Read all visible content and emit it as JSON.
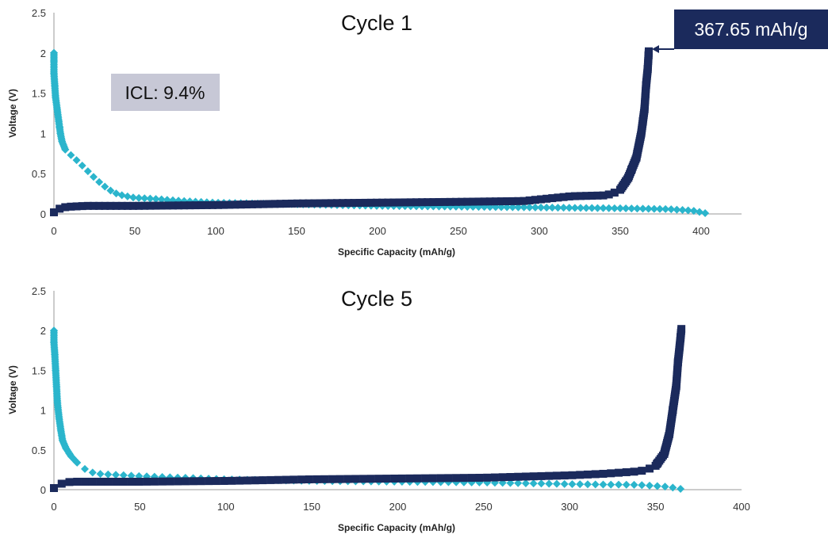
{
  "chart_data": [
    {
      "type": "scatter",
      "title": "Cycle 1",
      "xlabel": "Specific Capacity (mAh/g)",
      "ylabel": "Voltage (V)",
      "xlim": [
        0,
        420
      ],
      "ylim": [
        0,
        2.5
      ],
      "xticks": [
        0,
        50,
        100,
        150,
        200,
        250,
        300,
        350,
        400
      ],
      "yticks": [
        0,
        0.5,
        1,
        1.5,
        2,
        2.5
      ],
      "grid": false,
      "annotations": [
        {
          "text": "367.65 mAh/g",
          "x": 367.65,
          "y": 2.02,
          "style": "dark",
          "arrow": true
        },
        {
          "text": "ICL: 9.4%",
          "style": "grey"
        }
      ],
      "series": [
        {
          "marker": "diamond",
          "color": "#2bb5cc",
          "points": [
            [
              0,
              2.0
            ],
            [
              0,
              1.9
            ],
            [
              0,
              1.75
            ],
            [
              0.5,
              1.6
            ],
            [
              1,
              1.45
            ],
            [
              2,
              1.3
            ],
            [
              3,
              1.15
            ],
            [
              4,
              1.0
            ],
            [
              5,
              0.9
            ],
            [
              7,
              0.8
            ],
            [
              10,
              0.74
            ],
            [
              15,
              0.65
            ],
            [
              20,
              0.55
            ],
            [
              25,
              0.45
            ],
            [
              30,
              0.36
            ],
            [
              35,
              0.29
            ],
            [
              40,
              0.24
            ],
            [
              50,
              0.2
            ],
            [
              60,
              0.19
            ],
            [
              80,
              0.16
            ],
            [
              100,
              0.14
            ],
            [
              150,
              0.12
            ],
            [
              200,
              0.1
            ],
            [
              250,
              0.09
            ],
            [
              300,
              0.08
            ],
            [
              350,
              0.07
            ],
            [
              380,
              0.06
            ],
            [
              395,
              0.04
            ],
            [
              400,
              0.02
            ],
            [
              405,
              0.0
            ]
          ]
        },
        {
          "marker": "square",
          "color": "#1b2a5c",
          "points": [
            [
              0,
              0.02
            ],
            [
              2,
              0.05
            ],
            [
              5,
              0.08
            ],
            [
              10,
              0.09
            ],
            [
              20,
              0.1
            ],
            [
              50,
              0.1
            ],
            [
              100,
              0.11
            ],
            [
              150,
              0.13
            ],
            [
              200,
              0.14
            ],
            [
              250,
              0.15
            ],
            [
              290,
              0.16
            ],
            [
              300,
              0.18
            ],
            [
              310,
              0.2
            ],
            [
              320,
              0.22
            ],
            [
              340,
              0.23
            ],
            [
              345,
              0.25
            ],
            [
              350,
              0.3
            ],
            [
              355,
              0.45
            ],
            [
              360,
              0.7
            ],
            [
              363,
              1.0
            ],
            [
              365,
              1.3
            ],
            [
              366,
              1.6
            ],
            [
              367,
              1.8
            ],
            [
              367.65,
              2.02
            ]
          ]
        }
      ]
    },
    {
      "type": "scatter",
      "title": "Cycle 5",
      "xlabel": "Specific Capacity (mAh/g)",
      "ylabel": "Voltage (V)",
      "xlim": [
        0,
        400
      ],
      "ylim": [
        0,
        2.5
      ],
      "xticks": [
        0,
        50,
        100,
        150,
        200,
        250,
        300,
        350,
        400
      ],
      "yticks": [
        0,
        0.5,
        1,
        1.5,
        2,
        2.5
      ],
      "grid": false,
      "series": [
        {
          "marker": "diamond",
          "color": "#2bb5cc",
          "points": [
            [
              0,
              2.0
            ],
            [
              0,
              1.85
            ],
            [
              0.5,
              1.7
            ],
            [
              1,
              1.5
            ],
            [
              1.5,
              1.3
            ],
            [
              2,
              1.1
            ],
            [
              3,
              0.9
            ],
            [
              4,
              0.75
            ],
            [
              5,
              0.62
            ],
            [
              7,
              0.52
            ],
            [
              10,
              0.42
            ],
            [
              13,
              0.35
            ],
            [
              16,
              0.29
            ],
            [
              20,
              0.23
            ],
            [
              25,
              0.2
            ],
            [
              50,
              0.17
            ],
            [
              100,
              0.13
            ],
            [
              150,
              0.11
            ],
            [
              200,
              0.1
            ],
            [
              250,
              0.09
            ],
            [
              300,
              0.07
            ],
            [
              340,
              0.06
            ],
            [
              355,
              0.04
            ],
            [
              362,
              0.02
            ],
            [
              367,
              0.0
            ]
          ]
        },
        {
          "marker": "square",
          "color": "#1b2a5c",
          "points": [
            [
              0,
              0.02
            ],
            [
              2,
              0.05
            ],
            [
              5,
              0.08
            ],
            [
              10,
              0.1
            ],
            [
              50,
              0.1
            ],
            [
              100,
              0.11
            ],
            [
              150,
              0.13
            ],
            [
              200,
              0.14
            ],
            [
              250,
              0.15
            ],
            [
              300,
              0.18
            ],
            [
              320,
              0.2
            ],
            [
              340,
              0.23
            ],
            [
              345,
              0.25
            ],
            [
              350,
              0.3
            ],
            [
              355,
              0.45
            ],
            [
              358,
              0.7
            ],
            [
              360,
              1.0
            ],
            [
              362,
              1.3
            ],
            [
              363,
              1.6
            ],
            [
              364,
              1.8
            ],
            [
              365,
              2.02
            ]
          ]
        }
      ]
    }
  ]
}
